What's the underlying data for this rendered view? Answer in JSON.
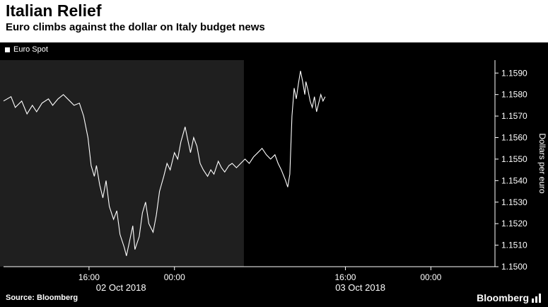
{
  "header": {
    "title": "Italian Relief",
    "subtitle": "Euro climbs against the dollar on Italy budget news"
  },
  "legend": {
    "label": "Euro Spot"
  },
  "footer": {
    "source": "Source: Bloomberg",
    "brand": "Bloomberg"
  },
  "chart_data": {
    "type": "line",
    "title": "Italian Relief",
    "subtitle": "Euro climbs against the dollar on Italy budget news",
    "ylabel": "Dollars per euro",
    "x_unit": "hours since 02 Oct 2018 08:00",
    "x_range": [
      0,
      46
    ],
    "y_range": [
      1.15,
      1.1596
    ],
    "grid": false,
    "legend_position": "top-left",
    "colors": {
      "background": "#000000",
      "shade": "#1f1f1f",
      "line": "#ffffff",
      "axis": "#ffffff",
      "text": "#ffffff"
    },
    "shade_x_range": [
      0,
      22.5
    ],
    "y_ticks": [
      {
        "v": 1.159,
        "label": "1.1590"
      },
      {
        "v": 1.158,
        "label": "1.1580"
      },
      {
        "v": 1.157,
        "label": "1.1570"
      },
      {
        "v": 1.156,
        "label": "1.1560"
      },
      {
        "v": 1.155,
        "label": "1.1550"
      },
      {
        "v": 1.154,
        "label": "1.1540"
      },
      {
        "v": 1.153,
        "label": "1.1530"
      },
      {
        "v": 1.152,
        "label": "1.1520"
      },
      {
        "v": 1.151,
        "label": "1.1510"
      },
      {
        "v": 1.15,
        "label": "1.1500"
      }
    ],
    "x_ticks": [
      {
        "t": 8,
        "label": "16:00"
      },
      {
        "t": 16,
        "label": "00:00"
      },
      {
        "t": 32,
        "label": "16:00"
      },
      {
        "t": 40,
        "label": "00:00"
      }
    ],
    "x_date_labels": [
      {
        "t": 11.0,
        "label": "02 Oct 2018"
      },
      {
        "t": 33.4,
        "label": "03 Oct 2018"
      }
    ],
    "series": [
      {
        "name": "Euro Spot",
        "points": [
          [
            0.0,
            1.1577
          ],
          [
            0.7,
            1.1579
          ],
          [
            1.1,
            1.1574
          ],
          [
            1.7,
            1.1577
          ],
          [
            2.2,
            1.1571
          ],
          [
            2.7,
            1.1575
          ],
          [
            3.1,
            1.1572
          ],
          [
            3.6,
            1.1576
          ],
          [
            4.2,
            1.1578
          ],
          [
            4.6,
            1.1575
          ],
          [
            5.1,
            1.1578
          ],
          [
            5.6,
            1.158
          ],
          [
            6.2,
            1.1577
          ],
          [
            6.6,
            1.1575
          ],
          [
            7.1,
            1.1576
          ],
          [
            7.5,
            1.157
          ],
          [
            7.9,
            1.156
          ],
          [
            8.2,
            1.1547
          ],
          [
            8.5,
            1.1542
          ],
          [
            8.7,
            1.1547
          ],
          [
            9.0,
            1.1538
          ],
          [
            9.3,
            1.1532
          ],
          [
            9.6,
            1.154
          ],
          [
            9.9,
            1.1528
          ],
          [
            10.3,
            1.1522
          ],
          [
            10.6,
            1.1526
          ],
          [
            10.9,
            1.1515
          ],
          [
            11.3,
            1.1509
          ],
          [
            11.5,
            1.1505
          ],
          [
            11.8,
            1.1512
          ],
          [
            12.1,
            1.1519
          ],
          [
            12.3,
            1.1508
          ],
          [
            12.7,
            1.1514
          ],
          [
            13.0,
            1.1525
          ],
          [
            13.3,
            1.153
          ],
          [
            13.6,
            1.152
          ],
          [
            14.0,
            1.1516
          ],
          [
            14.3,
            1.1524
          ],
          [
            14.6,
            1.1535
          ],
          [
            15.0,
            1.1542
          ],
          [
            15.3,
            1.1548
          ],
          [
            15.6,
            1.1545
          ],
          [
            16.0,
            1.1553
          ],
          [
            16.3,
            1.155
          ],
          [
            16.6,
            1.1558
          ],
          [
            17.0,
            1.1565
          ],
          [
            17.2,
            1.156
          ],
          [
            17.5,
            1.1553
          ],
          [
            17.8,
            1.156
          ],
          [
            18.1,
            1.1556
          ],
          [
            18.4,
            1.1548
          ],
          [
            18.7,
            1.1545
          ],
          [
            19.1,
            1.1542
          ],
          [
            19.4,
            1.1545
          ],
          [
            19.7,
            1.1543
          ],
          [
            20.1,
            1.1549
          ],
          [
            20.4,
            1.1546
          ],
          [
            20.7,
            1.1544
          ],
          [
            21.1,
            1.1547
          ],
          [
            21.4,
            1.1548
          ],
          [
            21.8,
            1.1546
          ],
          [
            22.2,
            1.1548
          ],
          [
            22.6,
            1.155
          ],
          [
            23.0,
            1.1548
          ],
          [
            23.4,
            1.1551
          ],
          [
            23.8,
            1.1553
          ],
          [
            24.2,
            1.1555
          ],
          [
            24.6,
            1.1552
          ],
          [
            25.0,
            1.155
          ],
          [
            25.4,
            1.1552
          ],
          [
            25.7,
            1.1548
          ],
          [
            26.0,
            1.1545
          ],
          [
            26.4,
            1.154
          ],
          [
            26.6,
            1.1537
          ],
          [
            26.8,
            1.1543
          ],
          [
            27.0,
            1.157
          ],
          [
            27.2,
            1.1583
          ],
          [
            27.4,
            1.1578
          ],
          [
            27.6,
            1.1585
          ],
          [
            27.8,
            1.1591
          ],
          [
            28.0,
            1.1586
          ],
          [
            28.2,
            1.158
          ],
          [
            28.3,
            1.1586
          ],
          [
            28.5,
            1.1582
          ],
          [
            28.7,
            1.1577
          ],
          [
            28.9,
            1.1574
          ],
          [
            29.1,
            1.1579
          ],
          [
            29.3,
            1.1572
          ],
          [
            29.5,
            1.1576
          ],
          [
            29.7,
            1.158
          ],
          [
            29.9,
            1.1577
          ],
          [
            30.1,
            1.1579
          ]
        ]
      }
    ]
  }
}
